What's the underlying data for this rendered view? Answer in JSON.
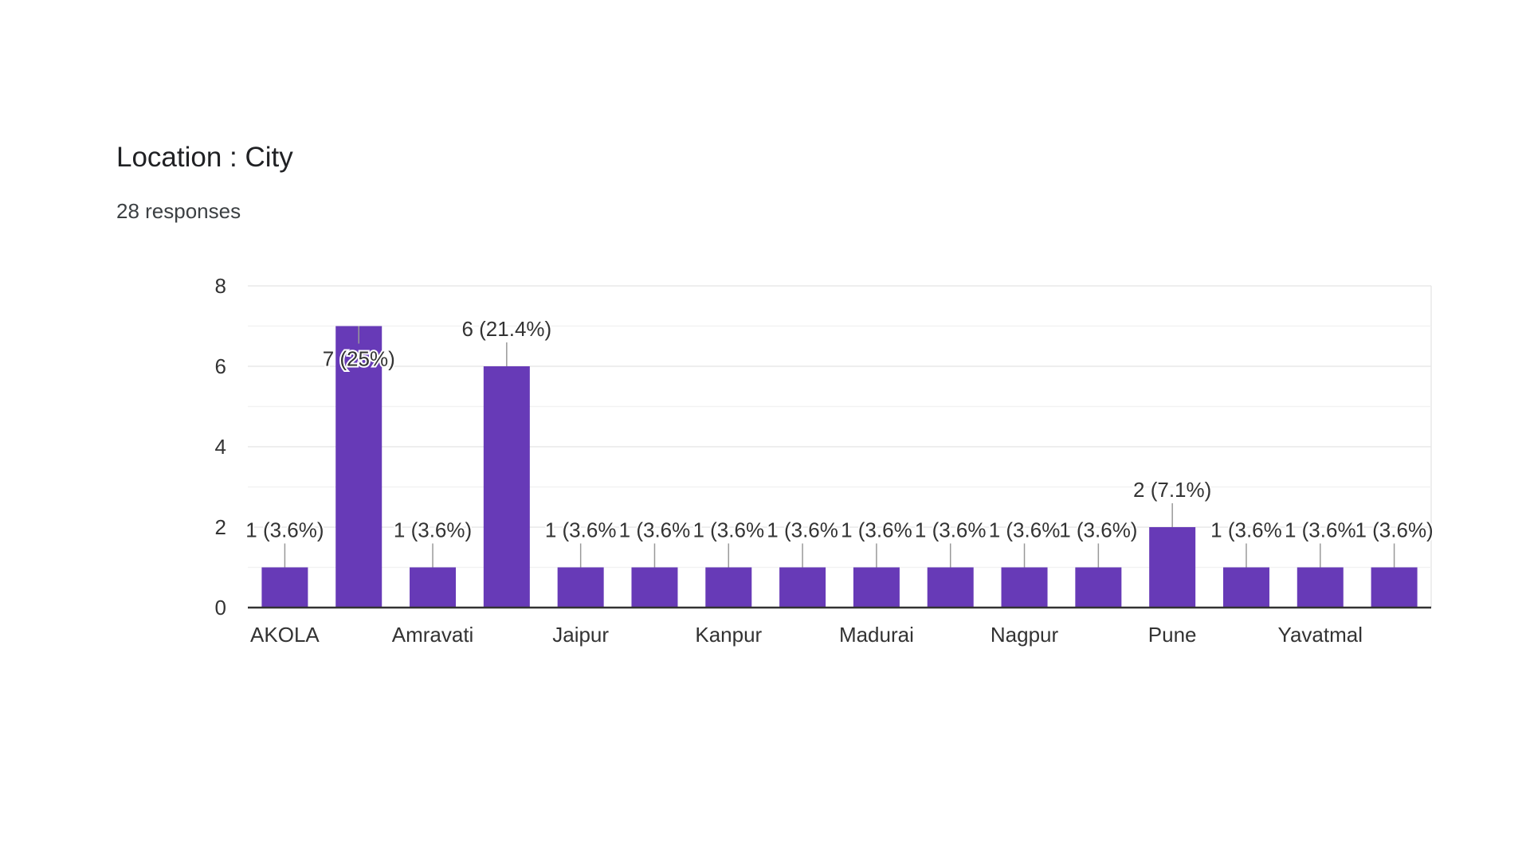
{
  "header": {
    "title": "Location : City",
    "responses": "28 responses"
  },
  "colors": {
    "bar": "#673ab7",
    "grid": "#e8e8e8",
    "axis": "#333333",
    "text": "#333333"
  },
  "chart_data": {
    "type": "bar",
    "title": "Location : City",
    "xlabel": "",
    "ylabel": "",
    "ylim": [
      0,
      8
    ],
    "yticks": [
      0,
      2,
      4,
      6,
      8
    ],
    "grid": true,
    "legend": "none",
    "categories": [
      "AKOLA",
      "",
      "Amravati",
      "",
      "Jaipur",
      "",
      "Kanpur",
      "",
      "Madurai",
      "",
      "Nagpur",
      "",
      "Pune",
      "",
      "Yavatmal",
      ""
    ],
    "values": [
      1,
      7,
      1,
      6,
      1,
      1,
      1,
      1,
      1,
      1,
      1,
      1,
      2,
      1,
      1,
      1
    ],
    "data_labels": [
      "1 (3.6%)",
      "7 (25%)",
      "1 (3.6%)",
      "6 (21.4%)",
      "1 (3.6%",
      "1 (3.6%",
      "1 (3.6%",
      "1 (3.6%",
      "1 (3.6%",
      "1 (3.6%",
      "1 (3.6%",
      "1 (3.6%)",
      "2 (7.1%)",
      "1 (3.6%",
      "1 (3.6%",
      "1 (3.6%)"
    ]
  }
}
